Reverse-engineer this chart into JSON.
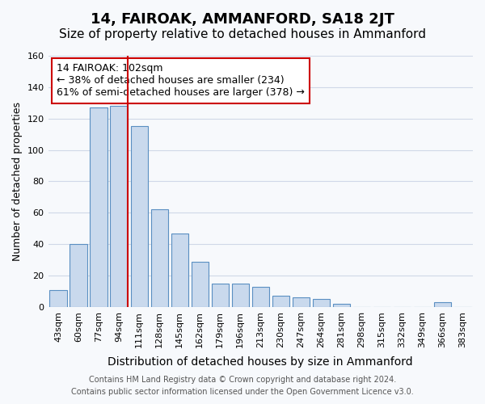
{
  "title": "14, FAIROAK, AMMANFORD, SA18 2JT",
  "subtitle": "Size of property relative to detached houses in Ammanford",
  "xlabel": "Distribution of detached houses by size in Ammanford",
  "ylabel": "Number of detached properties",
  "categories": [
    "43sqm",
    "60sqm",
    "77sqm",
    "94sqm",
    "111sqm",
    "128sqm",
    "145sqm",
    "162sqm",
    "179sqm",
    "196sqm",
    "213sqm",
    "230sqm",
    "247sqm",
    "264sqm",
    "281sqm",
    "298sqm",
    "315sqm",
    "332sqm",
    "349sqm",
    "366sqm",
    "383sqm"
  ],
  "values": [
    11,
    40,
    127,
    128,
    115,
    62,
    47,
    29,
    15,
    15,
    13,
    7,
    6,
    5,
    2,
    0,
    0,
    0,
    0,
    3,
    0
  ],
  "bar_color": "#c9d9ed",
  "bar_edge_color": "#5a8fc2",
  "vline_color": "#cc0000",
  "vline_x_index": 3,
  "bar_width": 0.85,
  "annotation_text": "14 FAIROAK: 102sqm\n← 38% of detached houses are smaller (234)\n61% of semi-detached houses are larger (378) →",
  "annotation_box_color": "#ffffff",
  "annotation_box_edge": "#cc0000",
  "ylim": [
    0,
    160
  ],
  "yticks": [
    0,
    20,
    40,
    60,
    80,
    100,
    120,
    140,
    160
  ],
  "footer_line1": "Contains HM Land Registry data © Crown copyright and database right 2024.",
  "footer_line2": "Contains public sector information licensed under the Open Government Licence v3.0.",
  "title_fontsize": 13,
  "subtitle_fontsize": 11,
  "xlabel_fontsize": 10,
  "ylabel_fontsize": 9,
  "tick_fontsize": 8,
  "footer_fontsize": 7,
  "annotation_fontsize": 9,
  "grid_color": "#d0d8e8",
  "background_color": "#f7f9fc"
}
